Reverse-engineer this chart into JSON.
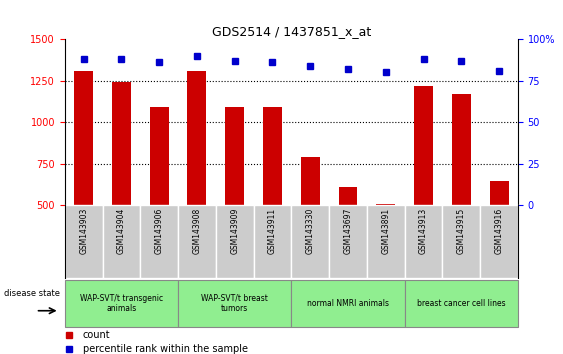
{
  "title": "GDS2514 / 1437851_x_at",
  "samples": [
    "GSM143903",
    "GSM143904",
    "GSM143906",
    "GSM143908",
    "GSM143909",
    "GSM143911",
    "GSM143330",
    "GSM143697",
    "GSM143891",
    "GSM143913",
    "GSM143915",
    "GSM143916"
  ],
  "counts": [
    1310,
    1240,
    1090,
    1310,
    1090,
    1090,
    790,
    610,
    505,
    1220,
    1170,
    645
  ],
  "percentiles": [
    88,
    88,
    86,
    90,
    87,
    86,
    84,
    82,
    80,
    88,
    87,
    81
  ],
  "groups": [
    {
      "label": "WAP-SVT/t transgenic\nanimals",
      "start": 0,
      "end": 3
    },
    {
      "label": "WAP-SVT/t breast\ntumors",
      "start": 3,
      "end": 6
    },
    {
      "label": "normal NMRI animals",
      "start": 6,
      "end": 9
    },
    {
      "label": "breast cancer cell lines",
      "start": 9,
      "end": 12
    }
  ],
  "bar_color": "#CC0000",
  "dot_color": "#0000CC",
  "ylim_left": [
    500,
    1500
  ],
  "ylim_right": [
    0,
    100
  ],
  "yticks_left": [
    500,
    750,
    1000,
    1250,
    1500
  ],
  "yticks_right": [
    0,
    25,
    50,
    75,
    100
  ],
  "ytick_labels_right": [
    "0",
    "25",
    "50",
    "75",
    "100%"
  ],
  "grid_values": [
    750,
    1000,
    1250
  ],
  "bar_color_hex": "#CC0000",
  "dot_color_hex": "#0000CC",
  "label_bg": "#cccccc",
  "group_bg": "#90EE90",
  "group_labels": [
    "WAP-SVT/t transgenic\nanimals",
    "WAP-SVT/t breast\ntumors",
    "normal NMRI animals",
    "breast cancer cell lines"
  ]
}
